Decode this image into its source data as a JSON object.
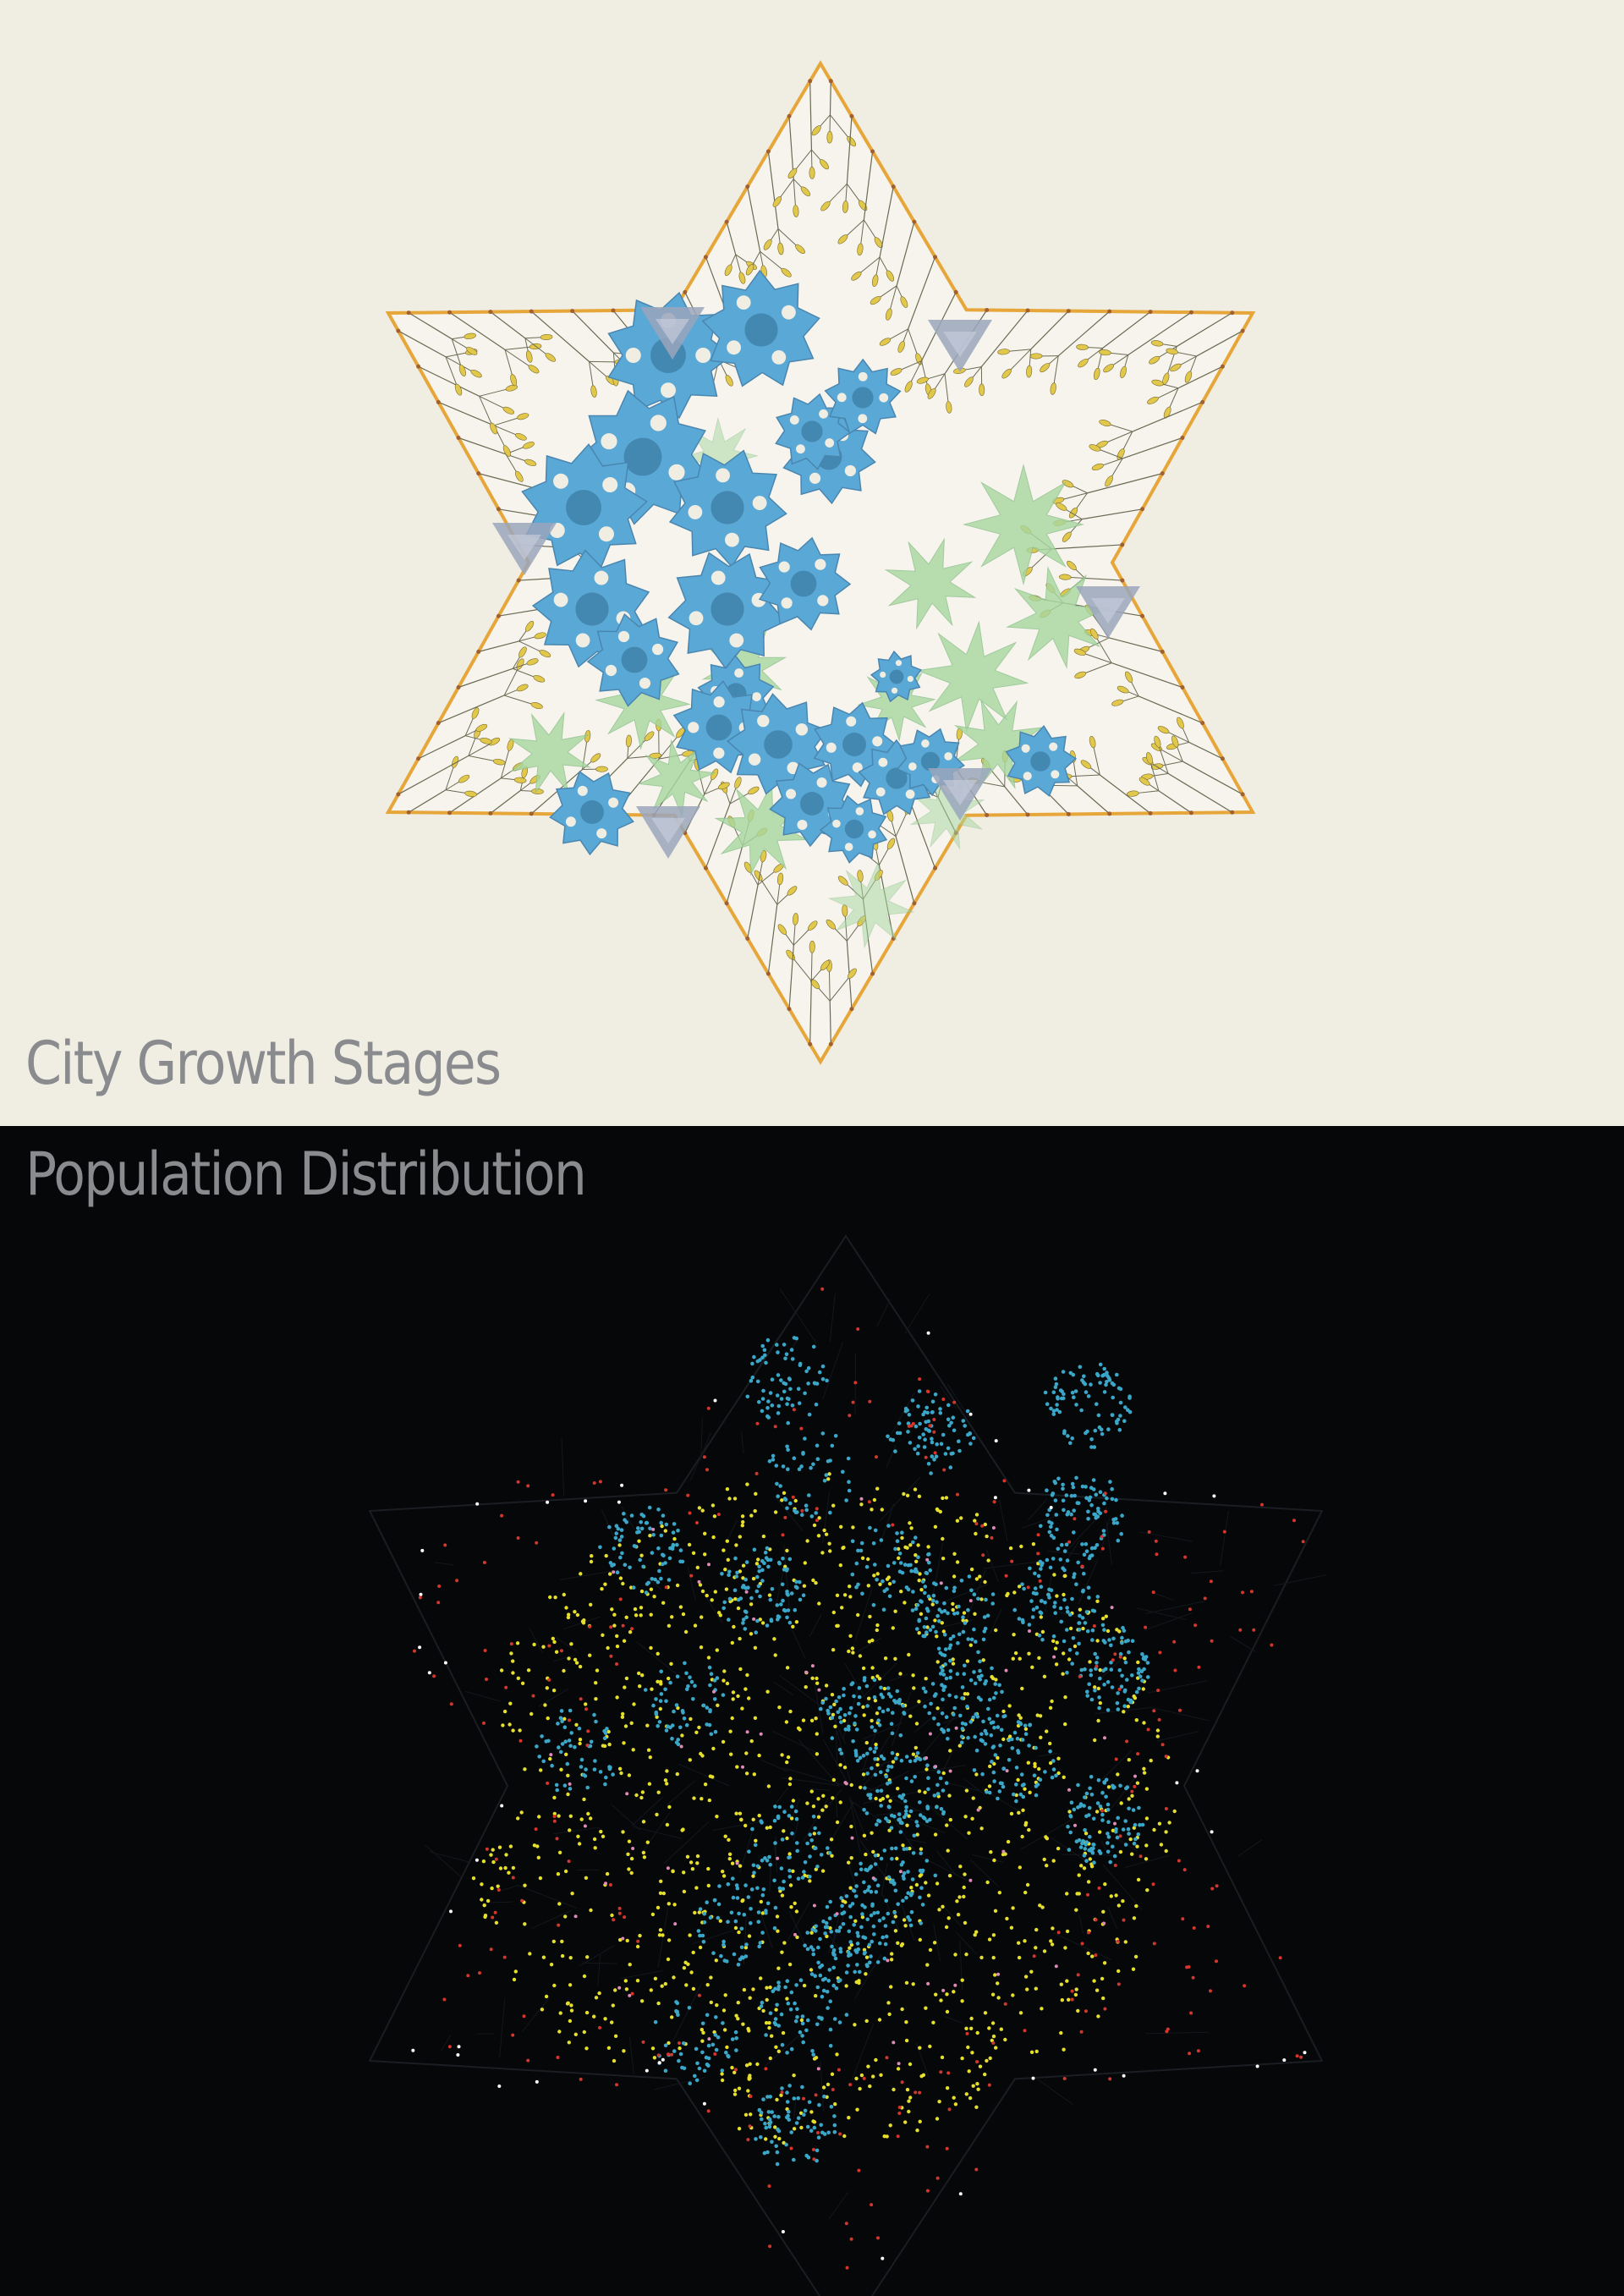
{
  "panels": {
    "growth": {
      "title": "City Growth Stages",
      "colors": {
        "background": "#f0ede3",
        "boundary": "#e6a63a",
        "outskirt_clusters": "#e2c84a",
        "dense_core": "#5aa8d6",
        "green_districts": "#a8d8a0",
        "grey_markers": "#9aa6bc"
      }
    },
    "population": {
      "title": "Population Distribution",
      "colors": {
        "background": "#050709",
        "cyan_dots": "#3aa7c9",
        "yellow_dots": "#e6df2c",
        "red_dots": "#d4362c",
        "white_dots": "#ffffff",
        "pink_dots": "#e08ab8"
      }
    }
  }
}
